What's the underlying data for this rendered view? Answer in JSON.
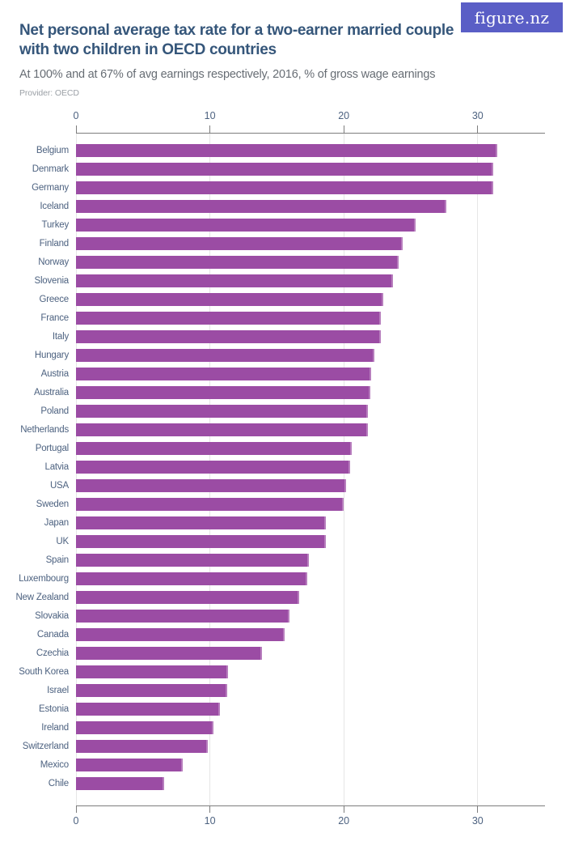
{
  "logo": {
    "text": "figure.nz",
    "bg_color": "#5a5ec6",
    "text_color": "#ffffff"
  },
  "header": {
    "title_lines": [
      "Net personal average tax rate for a two-earner married couple",
      "with two children in OECD countries"
    ],
    "subtitle": "At 100% and at 67% of avg earnings respectively, 2016, % of gross wage earnings",
    "provider": "Provider: OECD"
  },
  "chart_data": {
    "type": "bar",
    "orientation": "horizontal",
    "title": "Net personal average tax rate for a two-earner married couple with two children in OECD countries",
    "subtitle": "At 100% and at 67% of avg earnings respectively, 2016, % of gross wage earnings",
    "xlabel": "",
    "ylabel": "",
    "unit": "% of gross wage earnings",
    "year": "2016",
    "xlim": [
      0,
      35
    ],
    "ticks": [
      0,
      10,
      20,
      30
    ],
    "grid": true,
    "legend": false,
    "bar_color": "#9b4ca4",
    "categories": [
      "Belgium",
      "Denmark",
      "Germany",
      "Iceland",
      "Turkey",
      "Finland",
      "Norway",
      "Slovenia",
      "Greece",
      "France",
      "Italy",
      "Hungary",
      "Austria",
      "Australia",
      "Poland",
      "Netherlands",
      "Portugal",
      "Latvia",
      "USA",
      "Sweden",
      "Japan",
      "UK",
      "Spain",
      "Luxembourg",
      "New Zealand",
      "Slovakia",
      "Canada",
      "Czechia",
      "South Korea",
      "Israel",
      "Estonia",
      "Ireland",
      "Switzerland",
      "Mexico",
      "Chile"
    ],
    "values": [
      31.5,
      31.2,
      31.2,
      27.7,
      25.4,
      24.4,
      24.1,
      23.7,
      23.0,
      22.8,
      22.8,
      22.3,
      22.1,
      22.0,
      21.8,
      21.8,
      20.6,
      20.5,
      20.2,
      20.0,
      18.7,
      18.7,
      17.4,
      17.3,
      16.7,
      16.0,
      15.6,
      13.9,
      11.4,
      11.3,
      10.8,
      10.3,
      9.9,
      8.0,
      6.6
    ]
  }
}
